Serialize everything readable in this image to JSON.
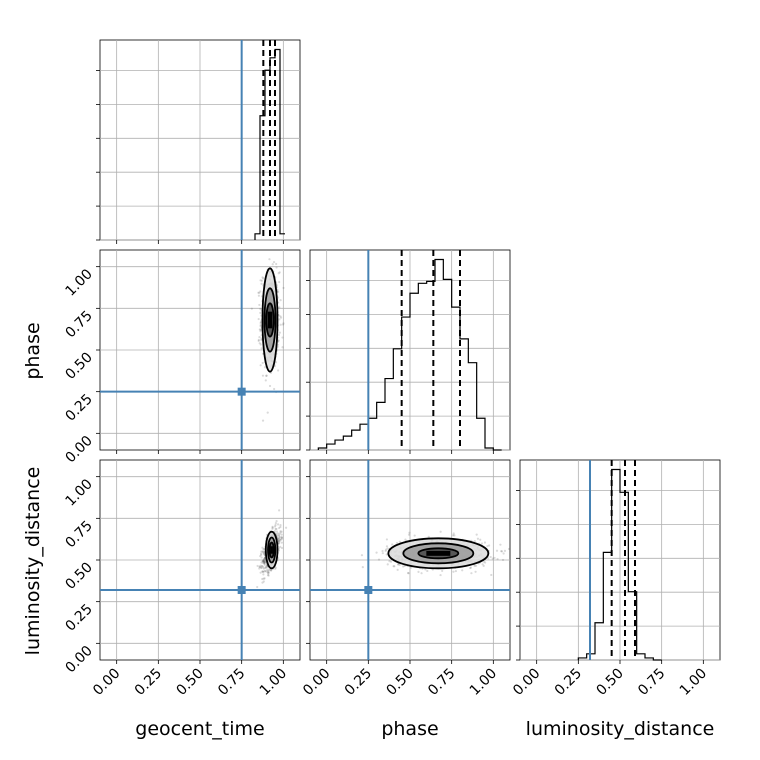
{
  "colors": {
    "truth": "#4682b4",
    "density": "#000000",
    "grid": "#b0b0b0"
  },
  "tick_labels": [
    "0.00",
    "0.25",
    "0.50",
    "0.75",
    "1.00"
  ],
  "chart_data": {
    "type": "corner",
    "parameters": [
      "geocent_time",
      "phase",
      "luminosity_distance"
    ],
    "axis_range": [
      -0.1,
      1.1
    ],
    "truths": {
      "geocent_time": 0.75,
      "phase": 0.25,
      "luminosity_distance": 0.32
    },
    "grid": true,
    "histograms": [
      {
        "parameter": "geocent_time",
        "bins": [
          0.83,
          0.86,
          0.89,
          0.92,
          0.95,
          0.98,
          1.01
        ],
        "counts": [
          0.03,
          0.6,
          0.82,
          0.88,
          0.92,
          0.03
        ],
        "quantiles": [
          0.88,
          0.92,
          0.95
        ],
        "max": 0.92
      },
      {
        "parameter": "phase",
        "bins": [
          -0.05,
          0.0,
          0.05,
          0.1,
          0.15,
          0.2,
          0.25,
          0.3,
          0.35,
          0.4,
          0.45,
          0.5,
          0.55,
          0.6,
          0.65,
          0.7,
          0.75,
          0.8,
          0.85,
          0.9,
          0.95,
          1.0,
          1.05
        ],
        "counts": [
          0.01,
          0.03,
          0.05,
          0.07,
          0.1,
          0.13,
          0.16,
          0.24,
          0.36,
          0.51,
          0.67,
          0.79,
          0.84,
          0.85,
          0.96,
          0.86,
          0.72,
          0.56,
          0.44,
          0.16,
          0.01,
          0.0
        ],
        "quantiles": [
          0.45,
          0.64,
          0.8
        ],
        "max": 0.96
      },
      {
        "parameter": "luminosity_distance",
        "bins": [
          0.25,
          0.3,
          0.35,
          0.4,
          0.45,
          0.5,
          0.55,
          0.6,
          0.65,
          0.7,
          0.75
        ],
        "counts": [
          0.01,
          0.03,
          0.18,
          0.52,
          0.92,
          0.81,
          0.33,
          0.03,
          0.01,
          0.0
        ],
        "quantiles": [
          0.45,
          0.53,
          0.59
        ],
        "max": 0.92
      }
    ],
    "joint": [
      {
        "x": "geocent_time",
        "y": "phase",
        "center": [
          0.92,
          0.68
        ],
        "sigma": [
          0.03,
          0.16
        ],
        "rho": 0.0,
        "contours": [
          {
            "level": "outer",
            "rx": 0.045,
            "ry": 0.31
          },
          {
            "level": "middle",
            "rx": 0.033,
            "ry": 0.19
          },
          {
            "level": "inner",
            "rx": 0.022,
            "ry": 0.1
          }
        ]
      },
      {
        "x": "geocent_time",
        "y": "luminosity_distance",
        "center": [
          0.93,
          0.56
        ],
        "sigma": [
          0.03,
          0.07
        ],
        "rho": 0.55,
        "contours": [
          {
            "level": "outer",
            "rx": 0.035,
            "ry": 0.11
          },
          {
            "level": "middle",
            "rx": 0.022,
            "ry": 0.075
          },
          {
            "level": "inner",
            "rx": 0.013,
            "ry": 0.045
          }
        ]
      },
      {
        "x": "phase",
        "y": "luminosity_distance",
        "center": [
          0.67,
          0.54
        ],
        "sigma": [
          0.17,
          0.05
        ],
        "rho": 0.0,
        "contours": [
          {
            "level": "outer",
            "rx": 0.3,
            "ry": 0.09
          },
          {
            "level": "middle",
            "rx": 0.21,
            "ry": 0.06
          },
          {
            "level": "inner",
            "rx": 0.12,
            "ry": 0.03
          }
        ]
      }
    ]
  }
}
